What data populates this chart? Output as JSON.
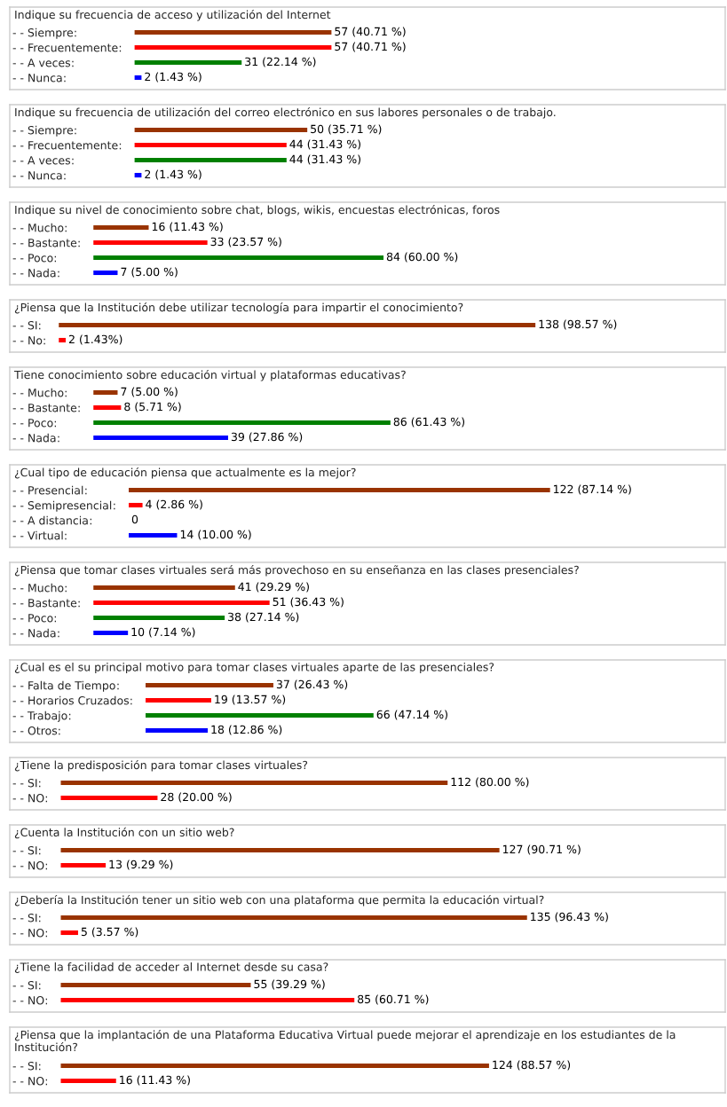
{
  "chart_data": [
    {
      "type": "bar",
      "orientation": "horizontal",
      "title": "Indique su frecuencia de acceso y utilización del Internet",
      "categories": [
        "- - Siempre",
        "- - Frecuentemente",
        "- - A veces",
        "- - Nunca"
      ],
      "values": [
        57,
        57,
        31,
        2
      ],
      "value_labels": [
        "57 (40.71 %)",
        "57 (40.71 %)",
        "31 (22.14 %)",
        "2 (1.43 %)"
      ],
      "colors": [
        "#993300",
        "#ff0000",
        "#008000",
        "#0000ff"
      ],
      "annotations": [
        ":"
      ]
    },
    {
      "type": "bar",
      "orientation": "horizontal",
      "title": "Indique su frecuencia de utilización del correo electrónico en sus labores personales o de trabajo.",
      "categories": [
        "- - Siempre",
        "- - Frecuentemente",
        "- - A veces",
        "- - Nunca"
      ],
      "values": [
        50,
        44,
        44,
        2
      ],
      "value_labels": [
        "50 (35.71 %)",
        "44 (31.43 %)",
        "44 (31.43 %)",
        "2 (1.43 %)"
      ],
      "colors": [
        "#993300",
        "#ff0000",
        "#008000",
        "#0000ff"
      ],
      "annotations": [
        ":"
      ]
    },
    {
      "type": "bar",
      "orientation": "horizontal",
      "title": "Indique su nivel de conocimiento sobre chat, blogs, wikis, encuestas electrónicas, foros",
      "categories": [
        "- - Mucho",
        "- - Bastante",
        "- - Poco",
        "- - Nada"
      ],
      "values": [
        16,
        33,
        84,
        7
      ],
      "value_labels": [
        "16 (11.43 %)",
        "33 (23.57 %)",
        "84 (60.00 %)",
        "7 (5.00 %)"
      ],
      "colors": [
        "#993300",
        "#ff0000",
        "#008000",
        "#0000ff"
      ],
      "annotations": [
        ":"
      ]
    },
    {
      "type": "bar",
      "orientation": "horizontal",
      "title": "¿Piensa que la Institución debe utilizar tecnología para impartir el conocimiento?",
      "categories": [
        "- - SI",
        "- - No"
      ],
      "values": [
        138,
        2
      ],
      "value_labels": [
        "138 (98.57 %)",
        "2 (1.43%)"
      ],
      "colors": [
        "#993300",
        "#ff0000"
      ],
      "annotations": [
        ":"
      ]
    },
    {
      "type": "bar",
      "orientation": "horizontal",
      "title": "Tiene conocimiento sobre educación virtual y plataformas educativas?",
      "categories": [
        "- - Mucho",
        "- - Bastante",
        "- - Poco",
        "- - Nada"
      ],
      "values": [
        7,
        8,
        86,
        39
      ],
      "value_labels": [
        "7 (5.00 %)",
        "8 (5.71 %)",
        "86 (61.43 %)",
        "39 (27.86 %)"
      ],
      "colors": [
        "#993300",
        "#ff0000",
        "#008000",
        "#0000ff"
      ],
      "annotations": [
        ":"
      ]
    },
    {
      "type": "bar",
      "orientation": "horizontal",
      "title": "¿Cual tipo de educación piensa que actualmente es la mejor?",
      "categories": [
        "- - Presencial",
        "- - Semipresencial",
        "- - A distancia",
        "- - Virtual"
      ],
      "values": [
        122,
        4,
        0,
        14
      ],
      "value_labels": [
        "122 (87.14 %)",
        "4 (2.86 %)",
        "0",
        "14 (10.00 %)"
      ],
      "colors": [
        "#993300",
        "#ff0000",
        "#008000",
        "#0000ff"
      ],
      "annotations": [
        ":"
      ]
    },
    {
      "type": "bar",
      "orientation": "horizontal",
      "title": "¿Piensa que tomar clases virtuales será más provechoso en su enseñanza en las clases presenciales?",
      "categories": [
        "- - Mucho",
        "- - Bastante",
        "- - Poco",
        "- - Nada"
      ],
      "values": [
        41,
        51,
        38,
        10
      ],
      "value_labels": [
        "41 (29.29 %)",
        "51 (36.43 %)",
        "38 (27.14 %)",
        "10 (7.14 %)"
      ],
      "colors": [
        "#993300",
        "#ff0000",
        "#008000",
        "#0000ff"
      ],
      "annotations": [
        ":"
      ]
    },
    {
      "type": "bar",
      "orientation": "horizontal",
      "title": "¿Cual es el su principal motivo para tomar clases virtuales aparte de las presenciales?",
      "categories": [
        "- - Falta de Tiempo",
        "- - Horarios Cruzados",
        "- - Trabajo",
        "- - Otros"
      ],
      "values": [
        37,
        19,
        66,
        18
      ],
      "value_labels": [
        "37 (26.43 %)",
        "19 (13.57 %)",
        "66 (47.14 %)",
        "18 (12.86 %)"
      ],
      "colors": [
        "#993300",
        "#ff0000",
        "#008000",
        "#0000ff"
      ],
      "annotations": [
        ":"
      ]
    },
    {
      "type": "bar",
      "orientation": "horizontal",
      "title": "¿Tiene la predisposición para tomar clases virtuales?",
      "categories": [
        "- - SI",
        "- - NO"
      ],
      "values": [
        112,
        28
      ],
      "value_labels": [
        "112 (80.00 %)",
        "28 (20.00 %)"
      ],
      "colors": [
        "#993300",
        "#ff0000"
      ],
      "annotations": [
        ":"
      ]
    },
    {
      "type": "bar",
      "orientation": "horizontal",
      "title": "¿Cuenta la Institución con un sitio web?",
      "categories": [
        "- - SI",
        "- - NO"
      ],
      "values": [
        127,
        13
      ],
      "value_labels": [
        "127 (90.71 %)",
        "13 (9.29 %)"
      ],
      "colors": [
        "#993300",
        "#ff0000"
      ],
      "annotations": [
        ":"
      ]
    },
    {
      "type": "bar",
      "orientation": "horizontal",
      "title": "¿Debería la Institución tener un sitio web con una plataforma que permita la educación virtual?",
      "categories": [
        "- - SI",
        "- - NO"
      ],
      "values": [
        135,
        5
      ],
      "value_labels": [
        "135 (96.43 %)",
        "5 (3.57 %)"
      ],
      "colors": [
        "#993300",
        "#ff0000"
      ],
      "annotations": [
        ":"
      ]
    },
    {
      "type": "bar",
      "orientation": "horizontal",
      "title": "¿Tiene la facilidad de acceder al Internet desde su casa?",
      "categories": [
        "- - SI",
        "- - NO"
      ],
      "values": [
        55,
        85
      ],
      "value_labels": [
        "55 (39.29 %)",
        "85 (60.71 %)"
      ],
      "colors": [
        "#993300",
        "#ff0000"
      ],
      "annotations": [
        ":"
      ]
    },
    {
      "type": "bar",
      "orientation": "horizontal",
      "title": "¿Piensa que la implantación de una Plataforma Educativa Virtual puede mejorar el aprendizaje en los estudiantes de la Institución?",
      "categories": [
        "- - SI",
        "- - NO"
      ],
      "values": [
        124,
        16
      ],
      "value_labels": [
        "124 (88.57 %)",
        "16 (11.43 %)"
      ],
      "colors": [
        "#993300",
        "#ff0000"
      ],
      "annotations": [
        ":"
      ]
    }
  ]
}
